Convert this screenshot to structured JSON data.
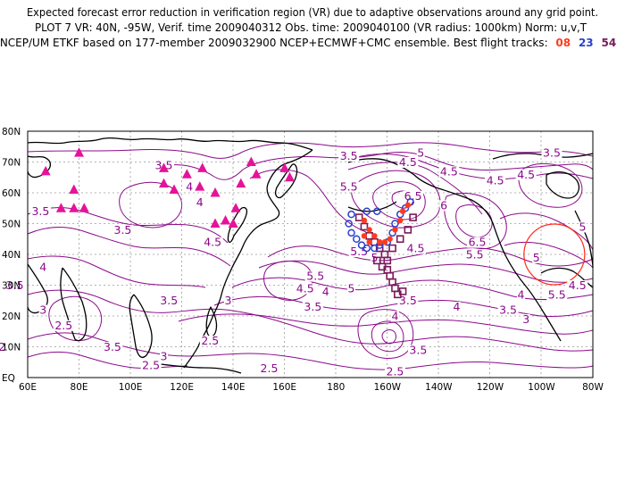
{
  "header": {
    "line1": "Expected forecast error reduction in verification region (VR) due to adaptive observations around any grid point.",
    "line2": "PLOT 7 VR: 40N, -95W, Verif. time 2009040312 Obs. time: 2009040100 (VR radius: 1000km) Norm: u,v,T",
    "line3_prefix": "NCEP/UM ETKF based on 177-member 2009032900 NCEP+ECMWF+CMC ensemble. Best flight tracks:",
    "tracks": [
      {
        "label": "08",
        "color": "#ff3b1e"
      },
      {
        "label": "23",
        "color": "#2a3fd0"
      },
      {
        "label": "54",
        "color": "#7a1a5a"
      }
    ]
  },
  "axes": {
    "lat_labels": [
      "80N",
      "70N",
      "60N",
      "50N",
      "40N",
      "30N",
      "20N",
      "10N",
      "EQ"
    ],
    "lon_labels": [
      "60E",
      "80E",
      "100E",
      "120E",
      "140E",
      "160E",
      "180",
      "160W",
      "140W",
      "120W",
      "100W",
      "80W"
    ]
  },
  "contour_labels": [
    {
      "text": "3.5",
      "lon": 185,
      "lat": 71
    },
    {
      "text": "4.5",
      "lon": 208,
      "lat": 69
    },
    {
      "text": "5",
      "lon": 213,
      "lat": 72
    },
    {
      "text": "4.5",
      "lon": 224,
      "lat": 66
    },
    {
      "text": "3.5",
      "lon": 264,
      "lat": 72
    },
    {
      "text": "4.5",
      "lon": 242,
      "lat": 63
    },
    {
      "text": "5.5",
      "lon": 185,
      "lat": 61
    },
    {
      "text": "6.5",
      "lon": 210,
      "lat": 58
    },
    {
      "text": "6",
      "lon": 222,
      "lat": 55
    },
    {
      "text": "3.5",
      "lon": 113,
      "lat": 68
    },
    {
      "text": "4",
      "lon": 123,
      "lat": 61
    },
    {
      "text": "4",
      "lon": 127,
      "lat": 56
    },
    {
      "text": "3.5",
      "lon": 65,
      "lat": 53
    },
    {
      "text": "3.5",
      "lon": 97,
      "lat": 47
    },
    {
      "text": "4.5",
      "lon": 132,
      "lat": 43
    },
    {
      "text": "4",
      "lon": 66,
      "lat": 35
    },
    {
      "text": "3.5",
      "lon": 55,
      "lat": 29
    },
    {
      "text": "3",
      "lon": 66,
      "lat": 21
    },
    {
      "text": "2.5",
      "lon": 74,
      "lat": 16
    },
    {
      "text": "2",
      "lon": 50,
      "lat": 9
    },
    {
      "text": "3.5",
      "lon": 115,
      "lat": 24
    },
    {
      "text": "3",
      "lon": 138,
      "lat": 24
    },
    {
      "text": "3.5",
      "lon": 93,
      "lat": 9
    },
    {
      "text": "2.5",
      "lon": 108,
      "lat": 3
    },
    {
      "text": "3",
      "lon": 113,
      "lat": 6
    },
    {
      "text": "2.5",
      "lon": 131,
      "lat": 11
    },
    {
      "text": "2.5",
      "lon": 154,
      "lat": 2
    },
    {
      "text": "5.5",
      "lon": 172,
      "lat": 32
    },
    {
      "text": "4.5",
      "lon": 168,
      "lat": 28
    },
    {
      "text": "4",
      "lon": 176,
      "lat": 27
    },
    {
      "text": "5",
      "lon": 186,
      "lat": 28
    },
    {
      "text": "3.5",
      "lon": 171,
      "lat": 22
    },
    {
      "text": "5.5",
      "lon": 189,
      "lat": 40
    },
    {
      "text": "5",
      "lon": 195,
      "lat": 38
    },
    {
      "text": "4.5",
      "lon": 211,
      "lat": 41
    },
    {
      "text": "3.5",
      "lon": 208,
      "lat": 24
    },
    {
      "text": "4",
      "lon": 203,
      "lat": 19
    },
    {
      "text": "3.5",
      "lon": 212,
      "lat": 8
    },
    {
      "text": "2.5",
      "lon": 203,
      "lat": 1
    },
    {
      "text": "4",
      "lon": 227,
      "lat": 22
    },
    {
      "text": "6.5",
      "lon": 235,
      "lat": 43
    },
    {
      "text": "5.5",
      "lon": 234,
      "lat": 39
    },
    {
      "text": "4.5",
      "lon": 254,
      "lat": 65
    },
    {
      "text": "5",
      "lon": 258,
      "lat": 38
    },
    {
      "text": "5",
      "lon": 276,
      "lat": 48
    },
    {
      "text": "5.5",
      "lon": 266,
      "lat": 26
    },
    {
      "text": "4.5",
      "lon": 274,
      "lat": 29
    },
    {
      "text": "4",
      "lon": 252,
      "lat": 26
    },
    {
      "text": "3.5",
      "lon": 247,
      "lat": 21
    },
    {
      "text": "3",
      "lon": 254,
      "lat": 18
    }
  ],
  "markers": {
    "triangles": [
      {
        "lon": 67,
        "lat": 67
      },
      {
        "lon": 80,
        "lat": 73
      },
      {
        "lon": 78,
        "lat": 61
      },
      {
        "lon": 73,
        "lat": 55
      },
      {
        "lon": 78,
        "lat": 55
      },
      {
        "lon": 82,
        "lat": 55
      },
      {
        "lon": 113,
        "lat": 68
      },
      {
        "lon": 113,
        "lat": 63
      },
      {
        "lon": 117,
        "lat": 61
      },
      {
        "lon": 122,
        "lat": 66
      },
      {
        "lon": 128,
        "lat": 68
      },
      {
        "lon": 127,
        "lat": 62
      },
      {
        "lon": 133,
        "lat": 60
      },
      {
        "lon": 133,
        "lat": 50
      },
      {
        "lon": 137,
        "lat": 51
      },
      {
        "lon": 143,
        "lat": 63
      },
      {
        "lon": 147,
        "lat": 70
      },
      {
        "lon": 149,
        "lat": 66
      },
      {
        "lon": 141,
        "lat": 55
      },
      {
        "lon": 140,
        "lat": 50
      },
      {
        "lon": 160,
        "lat": 68
      },
      {
        "lon": 162,
        "lat": 65
      }
    ],
    "track_08": [
      {
        "lon": 191,
        "lat": 51
      },
      {
        "lon": 193,
        "lat": 48
      },
      {
        "lon": 195,
        "lat": 46
      },
      {
        "lon": 197,
        "lat": 44
      },
      {
        "lon": 199,
        "lat": 44
      },
      {
        "lon": 201,
        "lat": 45
      },
      {
        "lon": 203,
        "lat": 48
      },
      {
        "lon": 205,
        "lat": 51
      },
      {
        "lon": 206,
        "lat": 54
      },
      {
        "lon": 208,
        "lat": 56
      },
      {
        "lon": 193,
        "lat": 44
      },
      {
        "lon": 191,
        "lat": 46
      }
    ],
    "track_23": [
      {
        "lon": 186,
        "lat": 53
      },
      {
        "lon": 185,
        "lat": 50
      },
      {
        "lon": 186,
        "lat": 47
      },
      {
        "lon": 188,
        "lat": 45
      },
      {
        "lon": 190,
        "lat": 43
      },
      {
        "lon": 192,
        "lat": 42
      },
      {
        "lon": 195,
        "lat": 42
      },
      {
        "lon": 197,
        "lat": 43
      },
      {
        "lon": 200,
        "lat": 44
      },
      {
        "lon": 202,
        "lat": 47
      },
      {
        "lon": 203,
        "lat": 50
      },
      {
        "lon": 205,
        "lat": 53
      },
      {
        "lon": 207,
        "lat": 55
      },
      {
        "lon": 209,
        "lat": 57
      },
      {
        "lon": 192,
        "lat": 54
      },
      {
        "lon": 196,
        "lat": 54
      }
    ],
    "track_54": [
      {
        "lon": 189,
        "lat": 52
      },
      {
        "lon": 191,
        "lat": 49
      },
      {
        "lon": 193,
        "lat": 46
      },
      {
        "lon": 195,
        "lat": 44
      },
      {
        "lon": 197,
        "lat": 42
      },
      {
        "lon": 199,
        "lat": 40
      },
      {
        "lon": 200,
        "lat": 38
      },
      {
        "lon": 200,
        "lat": 35
      },
      {
        "lon": 201,
        "lat": 33
      },
      {
        "lon": 202,
        "lat": 31
      },
      {
        "lon": 203,
        "lat": 29
      },
      {
        "lon": 204,
        "lat": 27
      },
      {
        "lon": 206,
        "lat": 28
      },
      {
        "lon": 198,
        "lat": 36
      },
      {
        "lon": 196,
        "lat": 38
      },
      {
        "lon": 202,
        "lat": 42
      },
      {
        "lon": 205,
        "lat": 45
      },
      {
        "lon": 208,
        "lat": 48
      },
      {
        "lon": 210,
        "lat": 52
      }
    ],
    "verification_circle": {
      "lon": 265,
      "lat": 40
    }
  }
}
